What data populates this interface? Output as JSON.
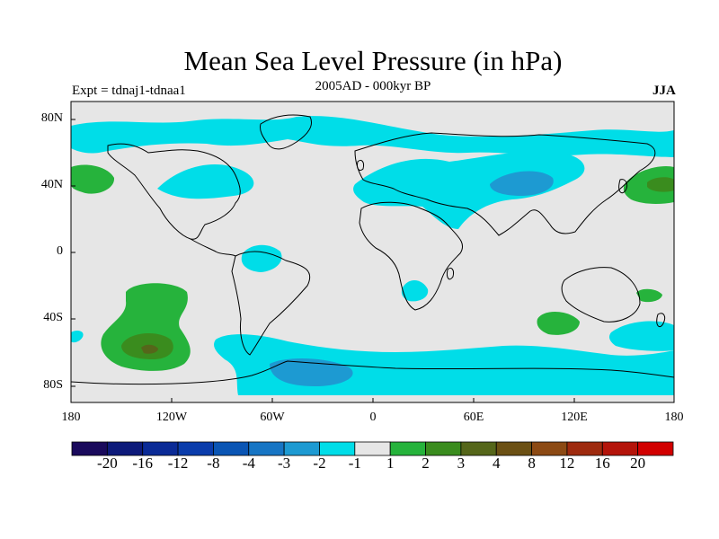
{
  "title": "Mean Sea Level Pressure (in hPa)",
  "subtitle": "2005AD - 000kyr BP",
  "experiment_label": "Expt = tdnaj1-tdnaa1",
  "season": "JJA",
  "map": {
    "lat_labels": [
      "80N",
      "40N",
      "0",
      "40S",
      "80S"
    ],
    "lon_labels": [
      "180",
      "120W",
      "60W",
      "0",
      "60E",
      "120E",
      "180"
    ],
    "land_color": "#e6e6e6",
    "coast_color": "#000000"
  },
  "colorbar": {
    "levels": [
      "-20",
      "-16",
      "-12",
      "-8",
      "-4",
      "-3",
      "-2",
      "-1",
      "1",
      "2",
      "3",
      "4",
      "8",
      "12",
      "16",
      "20"
    ],
    "colors": [
      "#1a0a5c",
      "#0d1a7a",
      "#0a2a96",
      "#0a3cab",
      "#0a55b4",
      "#1775c4",
      "#1d9ad2",
      "#00dde8",
      "#e6e6e6",
      "#26b33c",
      "#3a8c1e",
      "#55661a",
      "#6b5014",
      "#8c4a14",
      "#9e2a0e",
      "#b4140a",
      "#d20000"
    ]
  },
  "chart_data": {
    "type": "heatmap",
    "title": "Mean Sea Level Pressure (in hPa)",
    "subtitle": "2005AD - 000kyr BP",
    "units": "hPa",
    "xlabel": "",
    "ylabel": "",
    "xlim": [
      -180,
      180
    ],
    "ylim": [
      -90,
      90
    ],
    "levels": [
      -20,
      -16,
      -12,
      -8,
      -4,
      -3,
      -2,
      -1,
      1,
      2,
      3,
      4,
      8,
      12,
      16,
      20
    ],
    "regions": [
      {
        "name": "arctic-band",
        "lon": [
          -180,
          180
        ],
        "lat": [
          62,
          82
        ],
        "value": -1.5
      },
      {
        "name": "north-atlantic",
        "lon": [
          -60,
          -20
        ],
        "lat": [
          40,
          55
        ],
        "value": -1.5
      },
      {
        "name": "eurasia-low",
        "lon": [
          0,
          130
        ],
        "lat": [
          25,
          55
        ],
        "value": -1.5
      },
      {
        "name": "central-asia-core",
        "lon": [
          70,
          100
        ],
        "lat": [
          32,
          45
        ],
        "value": -2.5
      },
      {
        "name": "north-pacific-east",
        "lon": [
          -180,
          -165
        ],
        "lat": [
          30,
          45
        ],
        "value": 2
      },
      {
        "name": "north-pacific-west",
        "lon": [
          150,
          180
        ],
        "lat": [
          30,
          50
        ],
        "value": 2.5
      },
      {
        "name": "south-america-low",
        "lon": [
          -70,
          -50
        ],
        "lat": [
          -15,
          0
        ],
        "value": -1.5
      },
      {
        "name": "southern-africa-low",
        "lon": [
          15,
          30
        ],
        "lat": [
          -25,
          -15
        ],
        "value": -1.5
      },
      {
        "name": "south-pacific-high",
        "lon": [
          -150,
          -100
        ],
        "lat": [
          -70,
          -15
        ],
        "value": 2.5
      },
      {
        "name": "south-pacific-core",
        "lon": [
          -140,
          -120
        ],
        "lat": [
          -55,
          -45
        ],
        "value": 3.5
      },
      {
        "name": "indian-ocean-high",
        "lon": [
          105,
          120
        ],
        "lat": [
          -45,
          -35
        ],
        "value": 2
      },
      {
        "name": "tasman-high",
        "lon": [
          155,
          165
        ],
        "lat": [
          -25,
          -20
        ],
        "value": 2
      },
      {
        "name": "southern-ocean-low",
        "lon": [
          -80,
          180
        ],
        "lat": [
          -80,
          -45
        ],
        "value": -1.5
      },
      {
        "name": "weddell-core",
        "lon": [
          -60,
          -20
        ],
        "lat": [
          -75,
          -60
        ],
        "value": -2.5
      }
    ]
  }
}
